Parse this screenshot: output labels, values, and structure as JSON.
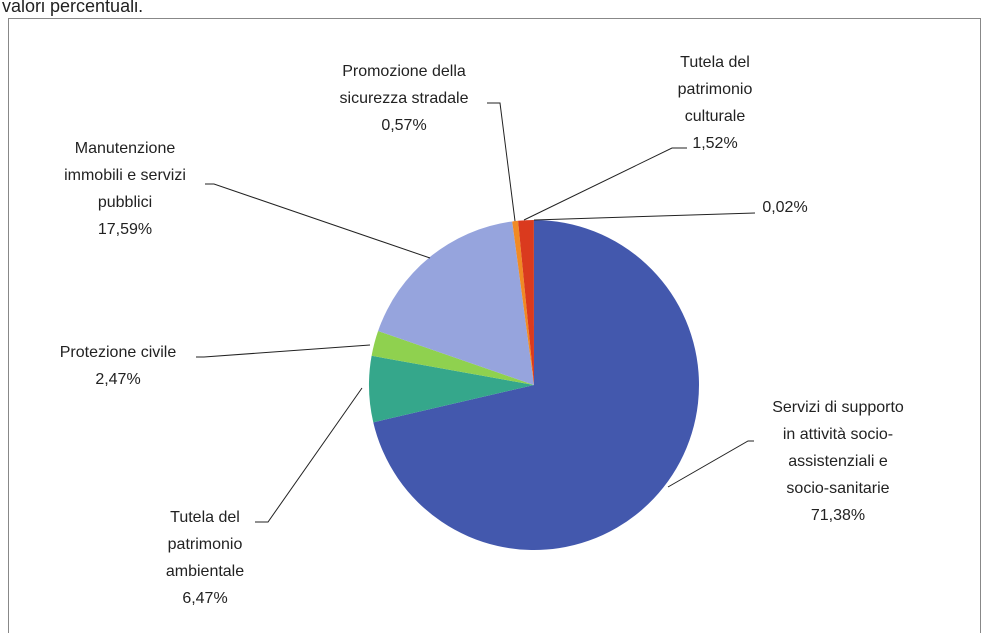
{
  "caption": "valori percentuali.",
  "chart_data": {
    "type": "pie",
    "categories": [
      [
        "Servizi di supporto",
        "in attività socio-",
        "assistenziali e",
        "socio-sanitarie"
      ],
      [
        "Tutela del",
        "patrimonio",
        "ambientale"
      ],
      [
        "Protezione civile"
      ],
      [
        "Manutenzione",
        "immobili e servizi",
        "pubblici"
      ],
      [
        "Promozione della",
        "sicurezza stradale"
      ],
      [
        "Tutela del",
        "patrimonio",
        "culturale"
      ],
      null
    ],
    "values": [
      71.38,
      6.47,
      2.47,
      17.59,
      0.57,
      1.52,
      0.02
    ],
    "value_labels": [
      "71,38%",
      "6,47%",
      "2,47%",
      "17,59%",
      "0,57%",
      "1,52%",
      "0,02%"
    ],
    "colors": [
      "#4358ad",
      "#35a78b",
      "#8fd14f",
      "#96a4dd",
      "#f08a24",
      "#da3a1e",
      "#8e2b16"
    ]
  }
}
